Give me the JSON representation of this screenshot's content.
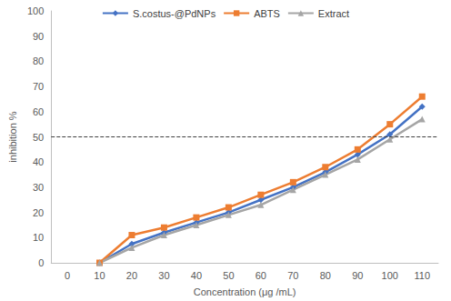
{
  "chart_data": {
    "type": "line",
    "x_label": "Concentration (μg /mL)",
    "y_label": "inhibition %",
    "categories": [
      "0",
      "10",
      "20",
      "30",
      "40",
      "50",
      "60",
      "70",
      "80",
      "90",
      "100",
      "110"
    ],
    "series": [
      {
        "name": "S.costus-@PdNPs",
        "color": "#4472c4",
        "marker": "diamond",
        "values": [
          null,
          0,
          7.5,
          12,
          16,
          20,
          25,
          30,
          36,
          43,
          51,
          62
        ]
      },
      {
        "name": "ABTS",
        "color": "#ed7d31",
        "marker": "square",
        "values": [
          null,
          0,
          11,
          14,
          18,
          22,
          27,
          32,
          38,
          45,
          55,
          66
        ]
      },
      {
        "name": "Extract",
        "color": "#a5a5a5",
        "marker": "triangle",
        "values": [
          null,
          0,
          6,
          11,
          15,
          19,
          23,
          29,
          35,
          41,
          49,
          57
        ]
      }
    ],
    "hline": 50,
    "ylim": [
      0,
      100
    ],
    "yticks": [
      0,
      10,
      20,
      30,
      40,
      50,
      60,
      70,
      80,
      90,
      100
    ],
    "grid": false,
    "legend": "top"
  }
}
